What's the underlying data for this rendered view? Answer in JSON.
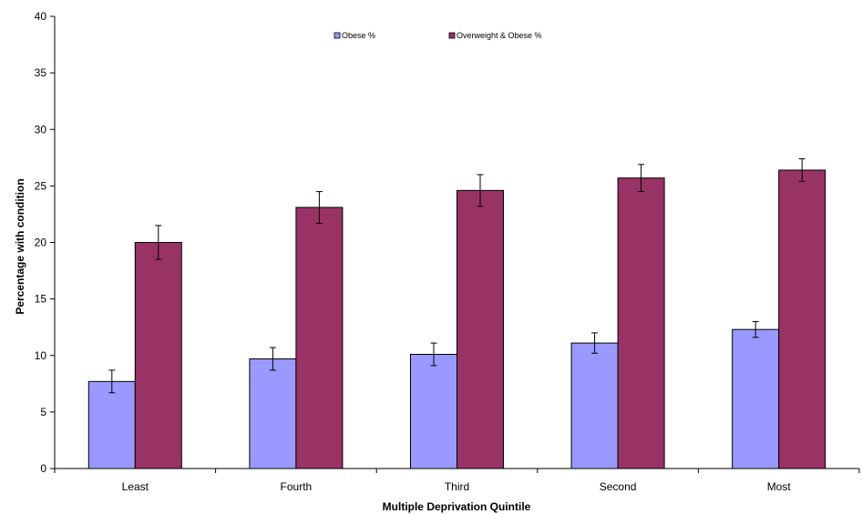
{
  "chart_data": {
    "type": "bar",
    "xlabel": "Multiple Deprivation Quintile",
    "ylabel": "Percentage with condition",
    "ylim": [
      0,
      40
    ],
    "yticks": [
      0,
      5,
      10,
      15,
      20,
      25,
      30,
      35,
      40
    ],
    "grid": false,
    "legend_position": "top",
    "categories": [
      "Least",
      "Fourth",
      "Third",
      "Second",
      "Most"
    ],
    "series": [
      {
        "name": "Obese %",
        "color": "#9999ff",
        "values": [
          7.7,
          9.7,
          10.1,
          11.1,
          12.3
        ],
        "error": [
          1.0,
          1.0,
          1.0,
          0.9,
          0.7
        ]
      },
      {
        "name": "Overweight & Obese %",
        "color": "#993366",
        "values": [
          20.0,
          23.1,
          24.6,
          25.7,
          26.4
        ],
        "error": [
          1.5,
          1.4,
          1.4,
          1.2,
          1.0
        ]
      }
    ]
  }
}
